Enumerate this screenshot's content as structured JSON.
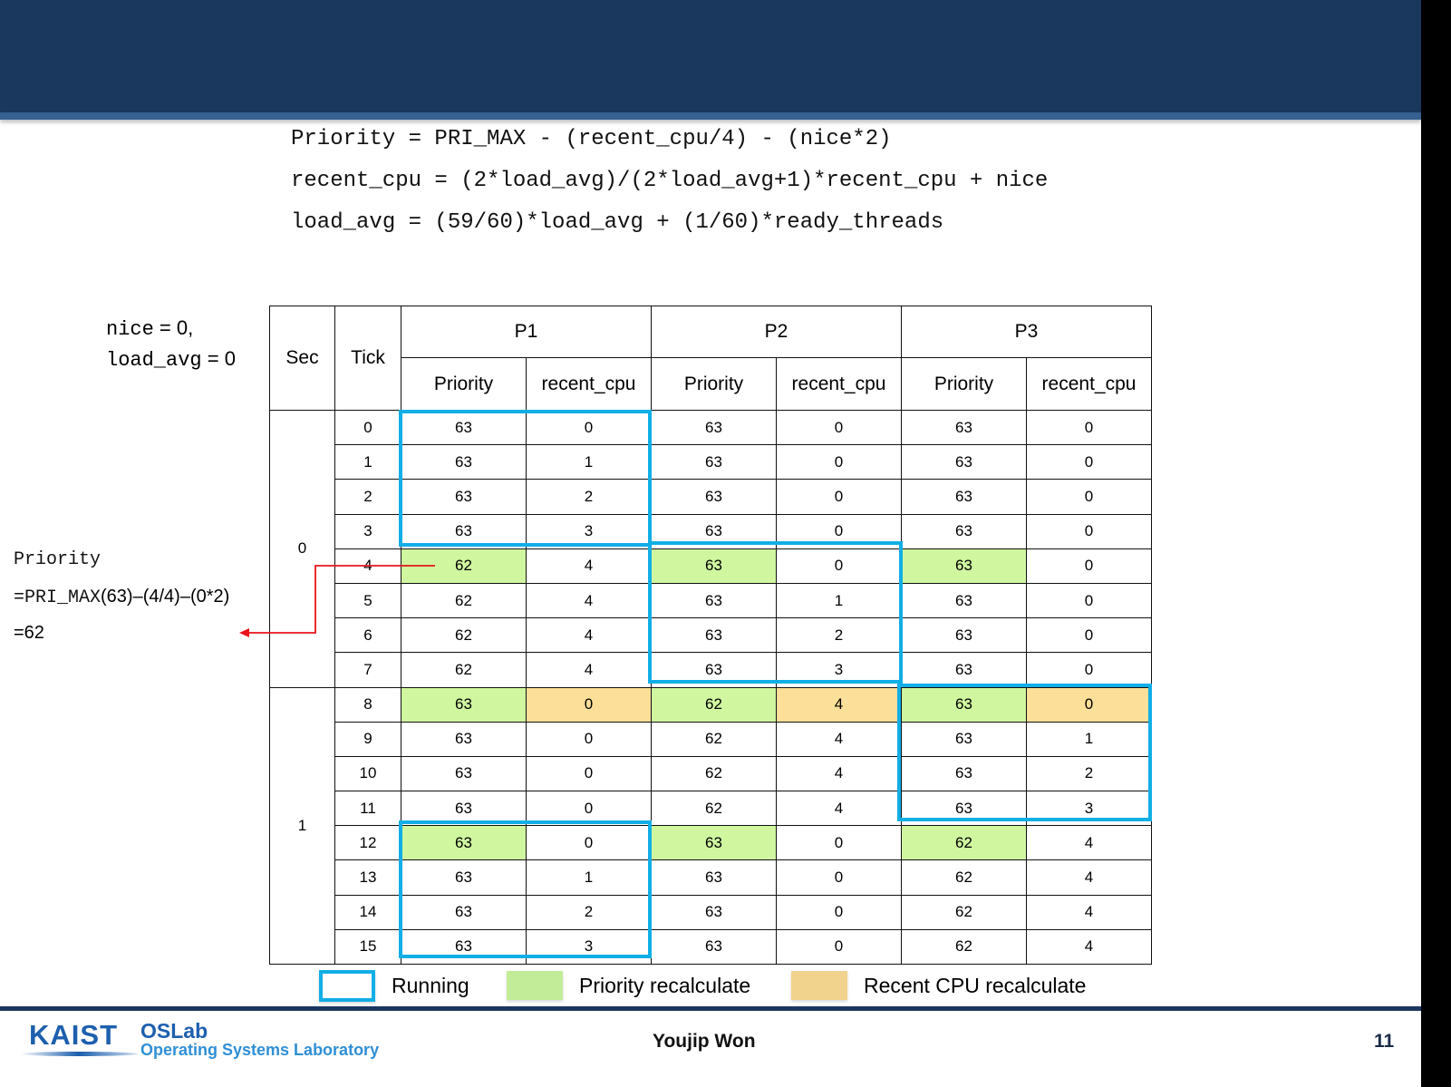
{
  "formulas": [
    "Priority = PRI_MAX - (recent_cpu/4) - (nice*2)",
    "recent_cpu = (2*load_avg)/(2*load_avg+1)*recent_cpu + nice",
    "load_avg = (59/60)*load_avg + (1/60)*ready_threads"
  ],
  "init_note": {
    "nice_var": "nice",
    "nice_eq": " = 0,",
    "load_var": "load_avg",
    "load_eq": " = 0"
  },
  "calc_note": {
    "line1": "Priority",
    "line2_mono": "=PRI_MAX",
    "line2_sans": "(63)–(4/4)–(0*2)",
    "line3": "=62"
  },
  "table": {
    "headers": {
      "sec": "Sec",
      "tick": "Tick",
      "processes": [
        "P1",
        "P2",
        "P3"
      ],
      "sub": [
        "Priority",
        "recent_cpu"
      ]
    },
    "sec_labels": [
      "0",
      "1"
    ],
    "rows": [
      {
        "tick": "0",
        "p1": [
          "63",
          "0"
        ],
        "p2": [
          "63",
          "0"
        ],
        "p3": [
          "63",
          "0"
        ]
      },
      {
        "tick": "1",
        "p1": [
          "63",
          "1"
        ],
        "p2": [
          "63",
          "0"
        ],
        "p3": [
          "63",
          "0"
        ]
      },
      {
        "tick": "2",
        "p1": [
          "63",
          "2"
        ],
        "p2": [
          "63",
          "0"
        ],
        "p3": [
          "63",
          "0"
        ]
      },
      {
        "tick": "3",
        "p1": [
          "63",
          "3"
        ],
        "p2": [
          "63",
          "0"
        ],
        "p3": [
          "63",
          "0"
        ]
      },
      {
        "tick": "4",
        "p1": [
          "62",
          "4"
        ],
        "p2": [
          "63",
          "0"
        ],
        "p3": [
          "63",
          "0"
        ]
      },
      {
        "tick": "5",
        "p1": [
          "62",
          "4"
        ],
        "p2": [
          "63",
          "1"
        ],
        "p3": [
          "63",
          "0"
        ]
      },
      {
        "tick": "6",
        "p1": [
          "62",
          "4"
        ],
        "p2": [
          "63",
          "2"
        ],
        "p3": [
          "63",
          "0"
        ]
      },
      {
        "tick": "7",
        "p1": [
          "62",
          "4"
        ],
        "p2": [
          "63",
          "3"
        ],
        "p3": [
          "63",
          "0"
        ]
      },
      {
        "tick": "8",
        "p1": [
          "63",
          "0"
        ],
        "p2": [
          "62",
          "4"
        ],
        "p3": [
          "63",
          "0"
        ]
      },
      {
        "tick": "9",
        "p1": [
          "63",
          "0"
        ],
        "p2": [
          "62",
          "4"
        ],
        "p3": [
          "63",
          "1"
        ]
      },
      {
        "tick": "10",
        "p1": [
          "63",
          "0"
        ],
        "p2": [
          "62",
          "4"
        ],
        "p3": [
          "63",
          "2"
        ]
      },
      {
        "tick": "11",
        "p1": [
          "63",
          "0"
        ],
        "p2": [
          "62",
          "4"
        ],
        "p3": [
          "63",
          "3"
        ]
      },
      {
        "tick": "12",
        "p1": [
          "63",
          "0"
        ],
        "p2": [
          "63",
          "0"
        ],
        "p3": [
          "62",
          "4"
        ]
      },
      {
        "tick": "13",
        "p1": [
          "63",
          "1"
        ],
        "p2": [
          "63",
          "0"
        ],
        "p3": [
          "62",
          "4"
        ]
      },
      {
        "tick": "14",
        "p1": [
          "63",
          "2"
        ],
        "p2": [
          "63",
          "0"
        ],
        "p3": [
          "62",
          "4"
        ]
      },
      {
        "tick": "15",
        "p1": [
          "63",
          "3"
        ],
        "p2": [
          "63",
          "0"
        ],
        "p3": [
          "62",
          "4"
        ]
      }
    ],
    "running_spans": [
      {
        "process": "P1",
        "ticks": "0-3"
      },
      {
        "process": "P2",
        "ticks": "4-7"
      },
      {
        "process": "P3",
        "ticks": "8-11"
      },
      {
        "process": "P1",
        "ticks": "12-15"
      }
    ],
    "priority_recalc_ticks": [
      "4",
      "8",
      "12"
    ],
    "recent_cpu_recalc_ticks": [
      "8"
    ]
  },
  "legend": {
    "running": "Running",
    "priority_recalc": "Priority recalculate",
    "cpu_recalc": "Recent CPU recalculate"
  },
  "colors": {
    "title_bar": "#1a375e",
    "running_outline": "#12aee6",
    "priority_recalc": "#d0f7a0",
    "cpu_recalc": "#fcdf98",
    "annotation_arrow": "#e8141c"
  },
  "footer": {
    "logo_kaist": "KAIST",
    "logo_oslab": "OSLab",
    "logo_subtitle": "Operating Systems Laboratory",
    "author": "Youjip Won",
    "page_number": "11"
  }
}
